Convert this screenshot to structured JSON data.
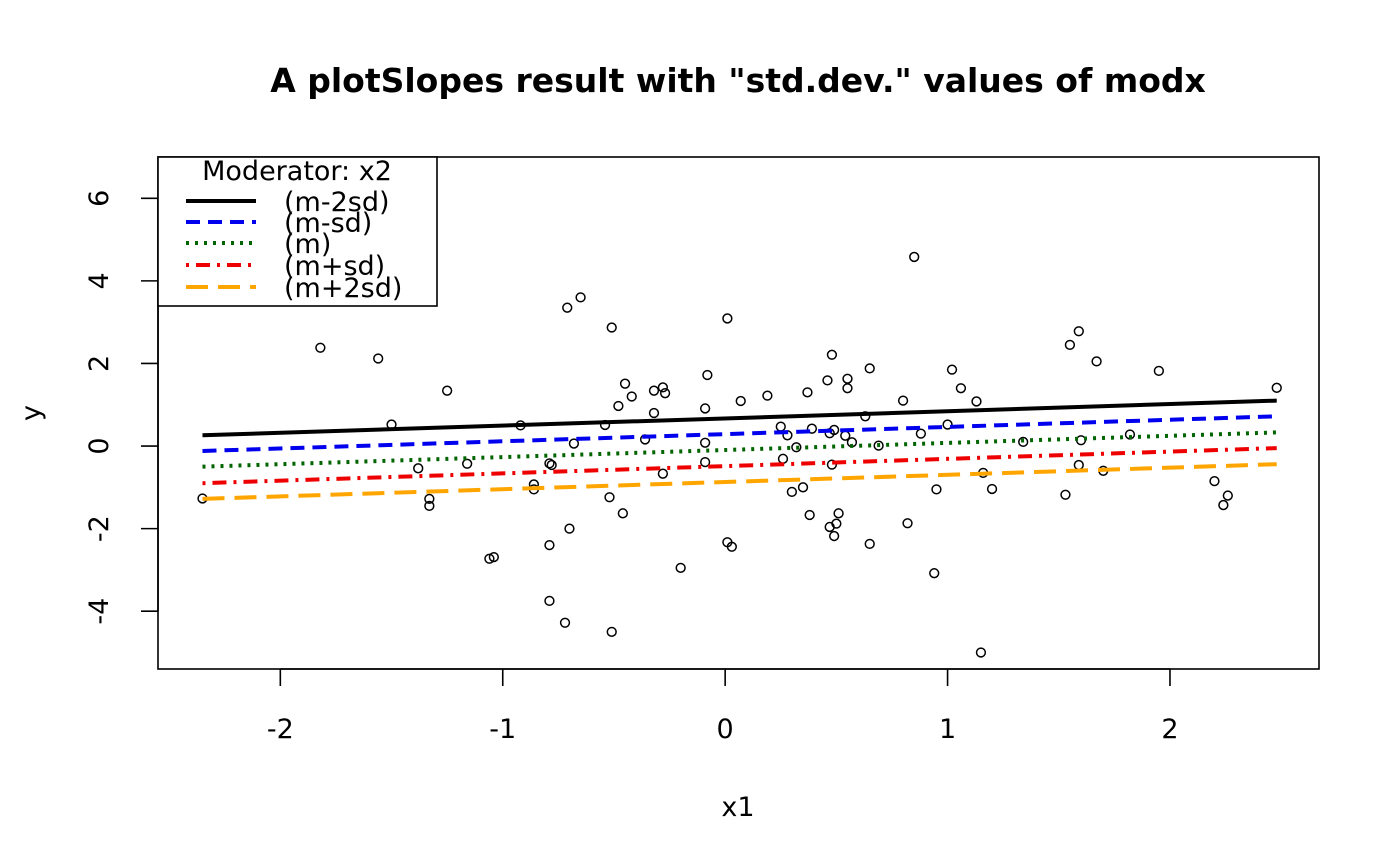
{
  "chart_data": {
    "type": "scatter",
    "title": "A plotSlopes result with \"std.dev.\" values of modx",
    "xlabel": "x1",
    "ylabel": "y",
    "xlim": [
      -2.55,
      2.67
    ],
    "ylim": [
      -5.4,
      7.0
    ],
    "xticks": [
      -2,
      -1,
      0,
      1,
      2
    ],
    "yticks": [
      -4,
      -2,
      0,
      2,
      4,
      6
    ],
    "legend": {
      "title": "Moderator: x2",
      "placement": "top-left",
      "entries": [
        "(m-2sd)",
        "(m-sd)",
        "(m)",
        "(m+sd)",
        "(m+2sd)"
      ]
    },
    "series": [
      {
        "name": "(m-2sd)",
        "color": "#000000",
        "dash": "solid",
        "x": [
          -2.35,
          2.48
        ],
        "y": [
          0.26,
          1.1
        ]
      },
      {
        "name": "(m-sd)",
        "color": "#0000ee",
        "dash": "dashed",
        "x": [
          -2.35,
          2.48
        ],
        "y": [
          -0.12,
          0.72
        ]
      },
      {
        "name": "(m)",
        "color": "#006400",
        "dash": "dotted",
        "x": [
          -2.35,
          2.48
        ],
        "y": [
          -0.5,
          0.33
        ]
      },
      {
        "name": "(m+sd)",
        "color": "#ee0000",
        "dash": "dotdash",
        "x": [
          -2.35,
          2.48
        ],
        "y": [
          -0.9,
          -0.05
        ]
      },
      {
        "name": "(m+2sd)",
        "color": "#ffa500",
        "dash": "longdash",
        "x": [
          -2.35,
          2.48
        ],
        "y": [
          -1.28,
          -0.44
        ]
      }
    ],
    "points": [
      [
        -2.35,
        -1.27
      ],
      [
        -1.82,
        2.38
      ],
      [
        -1.56,
        2.12
      ],
      [
        -1.5,
        0.52
      ],
      [
        -1.38,
        -0.54
      ],
      [
        -1.33,
        -1.28
      ],
      [
        -1.33,
        -1.45
      ],
      [
        -1.25,
        1.34
      ],
      [
        -1.16,
        -0.43
      ],
      [
        -1.06,
        -2.73
      ],
      [
        -1.04,
        -2.69
      ],
      [
        -0.92,
        0.5
      ],
      [
        -0.86,
        -0.93
      ],
      [
        -0.86,
        -1.05
      ],
      [
        -0.79,
        -2.4
      ],
      [
        -0.79,
        -0.42
      ],
      [
        -0.78,
        -0.46
      ],
      [
        -0.79,
        -3.75
      ],
      [
        -0.72,
        -4.28
      ],
      [
        -0.71,
        3.35
      ],
      [
        -0.7,
        -2.0
      ],
      [
        -0.68,
        0.06
      ],
      [
        -0.65,
        3.6
      ],
      [
        -0.54,
        0.51
      ],
      [
        -0.52,
        -1.24
      ],
      [
        -0.51,
        2.87
      ],
      [
        -0.51,
        -4.5
      ],
      [
        -0.48,
        0.97
      ],
      [
        -0.46,
        -1.63
      ],
      [
        -0.45,
        1.51
      ],
      [
        -0.42,
        1.2
      ],
      [
        -0.36,
        0.16
      ],
      [
        -0.32,
        1.34
      ],
      [
        -0.32,
        0.8
      ],
      [
        -0.28,
        1.42
      ],
      [
        -0.27,
        1.28
      ],
      [
        -0.28,
        -0.67
      ],
      [
        -0.2,
        -2.95
      ],
      [
        -0.09,
        0.91
      ],
      [
        -0.09,
        0.08
      ],
      [
        -0.08,
        1.72
      ],
      [
        -0.09,
        -0.39
      ],
      [
        0.01,
        3.09
      ],
      [
        0.01,
        -2.33
      ],
      [
        0.03,
        -2.44
      ],
      [
        0.07,
        1.09
      ],
      [
        0.19,
        1.22
      ],
      [
        0.25,
        0.47
      ],
      [
        0.26,
        -0.31
      ],
      [
        0.28,
        0.26
      ],
      [
        0.3,
        -1.11
      ],
      [
        0.32,
        -0.03
      ],
      [
        0.35,
        -1.0
      ],
      [
        0.37,
        1.3
      ],
      [
        0.38,
        -1.67
      ],
      [
        0.39,
        0.42
      ],
      [
        0.46,
        1.59
      ],
      [
        0.47,
        -1.96
      ],
      [
        0.47,
        0.31
      ],
      [
        0.48,
        -0.45
      ],
      [
        0.48,
        2.21
      ],
      [
        0.49,
        0.39
      ],
      [
        0.49,
        -2.18
      ],
      [
        0.5,
        -1.88
      ],
      [
        0.51,
        -1.63
      ],
      [
        0.54,
        0.25
      ],
      [
        0.55,
        1.4
      ],
      [
        0.55,
        1.63
      ],
      [
        0.57,
        0.09
      ],
      [
        0.63,
        0.72
      ],
      [
        0.65,
        1.88
      ],
      [
        0.65,
        -2.37
      ],
      [
        0.69,
        0.01
      ],
      [
        0.8,
        1.1
      ],
      [
        0.82,
        -1.87
      ],
      [
        0.85,
        4.58
      ],
      [
        0.88,
        0.3
      ],
      [
        0.94,
        -3.08
      ],
      [
        0.95,
        -1.05
      ],
      [
        1.0,
        0.52
      ],
      [
        1.02,
        1.85
      ],
      [
        1.06,
        1.4
      ],
      [
        1.13,
        1.08
      ],
      [
        1.15,
        -5.0
      ],
      [
        1.16,
        -0.65
      ],
      [
        1.2,
        -1.04
      ],
      [
        1.34,
        0.1
      ],
      [
        1.53,
        -1.18
      ],
      [
        1.55,
        2.45
      ],
      [
        1.59,
        2.78
      ],
      [
        1.59,
        -0.46
      ],
      [
        1.6,
        0.14
      ],
      [
        1.67,
        2.05
      ],
      [
        1.7,
        -0.6
      ],
      [
        1.82,
        0.28
      ],
      [
        1.95,
        1.82
      ],
      [
        2.2,
        -0.85
      ],
      [
        2.24,
        -1.43
      ],
      [
        2.26,
        -1.2
      ],
      [
        2.48,
        1.41
      ]
    ]
  }
}
